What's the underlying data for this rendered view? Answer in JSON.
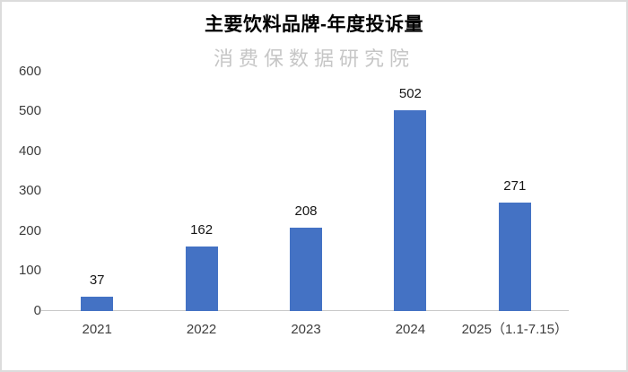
{
  "chart_data": {
    "type": "bar",
    "title": "主要饮料品牌-年度投诉量",
    "watermark": "消费保数据研究院",
    "categories": [
      "2021",
      "2022",
      "2023",
      "2024",
      "2025（1.1-7.15）"
    ],
    "values": [
      37,
      162,
      208,
      502,
      271
    ],
    "xlabel": "",
    "ylabel": "",
    "ylim": [
      0,
      600
    ],
    "yticks": [
      0,
      100,
      200,
      300,
      400,
      500,
      600
    ],
    "grid": false,
    "legend": false,
    "data_labels": [
      37,
      162,
      208,
      502,
      271
    ],
    "bar_color": "#4472C4",
    "axis_line_color": "#c9c9c9",
    "title_color": "#000000",
    "watermark_color": "#c6c6c6",
    "tick_label_color": "#3d3d3d",
    "data_label_color": "#151515"
  }
}
